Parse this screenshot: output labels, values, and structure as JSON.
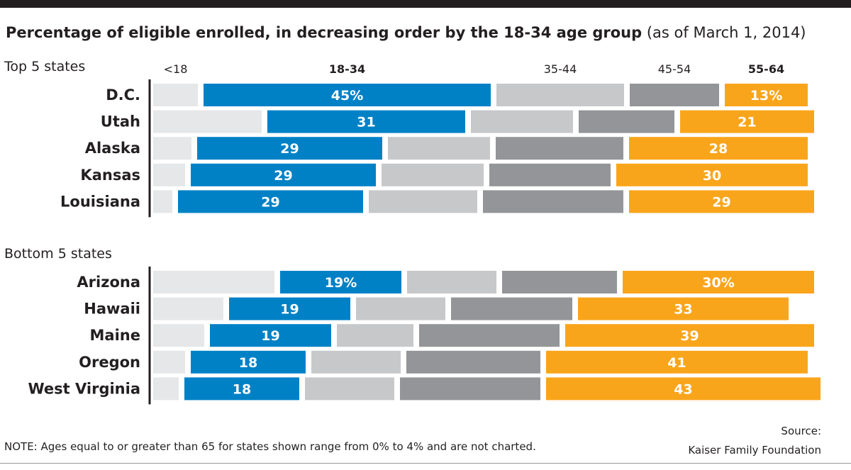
{
  "title": {
    "main": "Percentage of eligible enrolled, in decreasing order by the 18-34 age group",
    "sub": "(as of March 1, 2014)"
  },
  "groups": {
    "top": "Top 5 states",
    "bottom": "Bottom 5 states"
  },
  "note": "NOTE: Ages equal to or greater than 65 for states shown range from 0% to 4% and are not charted.",
  "source": {
    "line1": "Source:",
    "line2": "Kaiser Family Foundation"
  },
  "colors": {
    "<18": "#e6e7e8",
    "18-34": "#0081c6",
    "35-44": "#c7c8ca",
    "45-54": "#939598",
    "55-64": "#f9a51b"
  },
  "chart_data": {
    "type": "bar",
    "orientation": "horizontal-stacked",
    "segments": [
      "<18",
      "18-34",
      "35-44",
      "45-54",
      "55-64"
    ],
    "segment_header_style": [
      "normal",
      "bold",
      "normal",
      "normal",
      "bold"
    ],
    "groups": [
      {
        "name": "Top 5 states",
        "rows": [
          {
            "state": "D.C.",
            "values": [
              7,
              45,
              20,
              14,
              13
            ],
            "labels": [
              "",
              "45%",
              "",
              "",
              "13%"
            ]
          },
          {
            "state": "Utah",
            "values": [
              17,
              31,
              16,
              15,
              21
            ],
            "labels": [
              "",
              "31",
              "",
              "",
              "21"
            ]
          },
          {
            "state": "Alaska",
            "values": [
              6,
              29,
              16,
              20,
              28
            ],
            "labels": [
              "",
              "29",
              "",
              "",
              "28"
            ]
          },
          {
            "state": "Kansas",
            "values": [
              5,
              29,
              16,
              19,
              30
            ],
            "labels": [
              "",
              "29",
              "",
              "",
              "30"
            ]
          },
          {
            "state": "Louisiana",
            "values": [
              3,
              29,
              17,
              22,
              29
            ],
            "labels": [
              "",
              "29",
              "",
              "",
              "29"
            ]
          }
        ]
      },
      {
        "name": "Bottom 5 states",
        "rows": [
          {
            "state": "Arizona",
            "values": [
              19,
              19,
              14,
              18,
              30
            ],
            "labels": [
              "",
              "19%",
              "",
              "",
              "30%"
            ]
          },
          {
            "state": "Hawaii",
            "values": [
              11,
              19,
              14,
              19,
              33
            ],
            "labels": [
              "",
              "19",
              "",
              "",
              "33"
            ]
          },
          {
            "state": "Maine",
            "values": [
              8,
              19,
              12,
              22,
              39
            ],
            "labels": [
              "",
              "19",
              "",
              "",
              "39"
            ]
          },
          {
            "state": "Oregon",
            "values": [
              5,
              18,
              14,
              21,
              41
            ],
            "labels": [
              "",
              "18",
              "",
              "",
              "41"
            ]
          },
          {
            "state": "West Virginia",
            "values": [
              4,
              18,
              14,
              22,
              43
            ],
            "labels": [
              "",
              "18",
              "",
              "",
              "43"
            ]
          }
        ]
      }
    ],
    "xlim": [
      0,
      100
    ],
    "grid": false,
    "legend": "column headers above top group"
  }
}
